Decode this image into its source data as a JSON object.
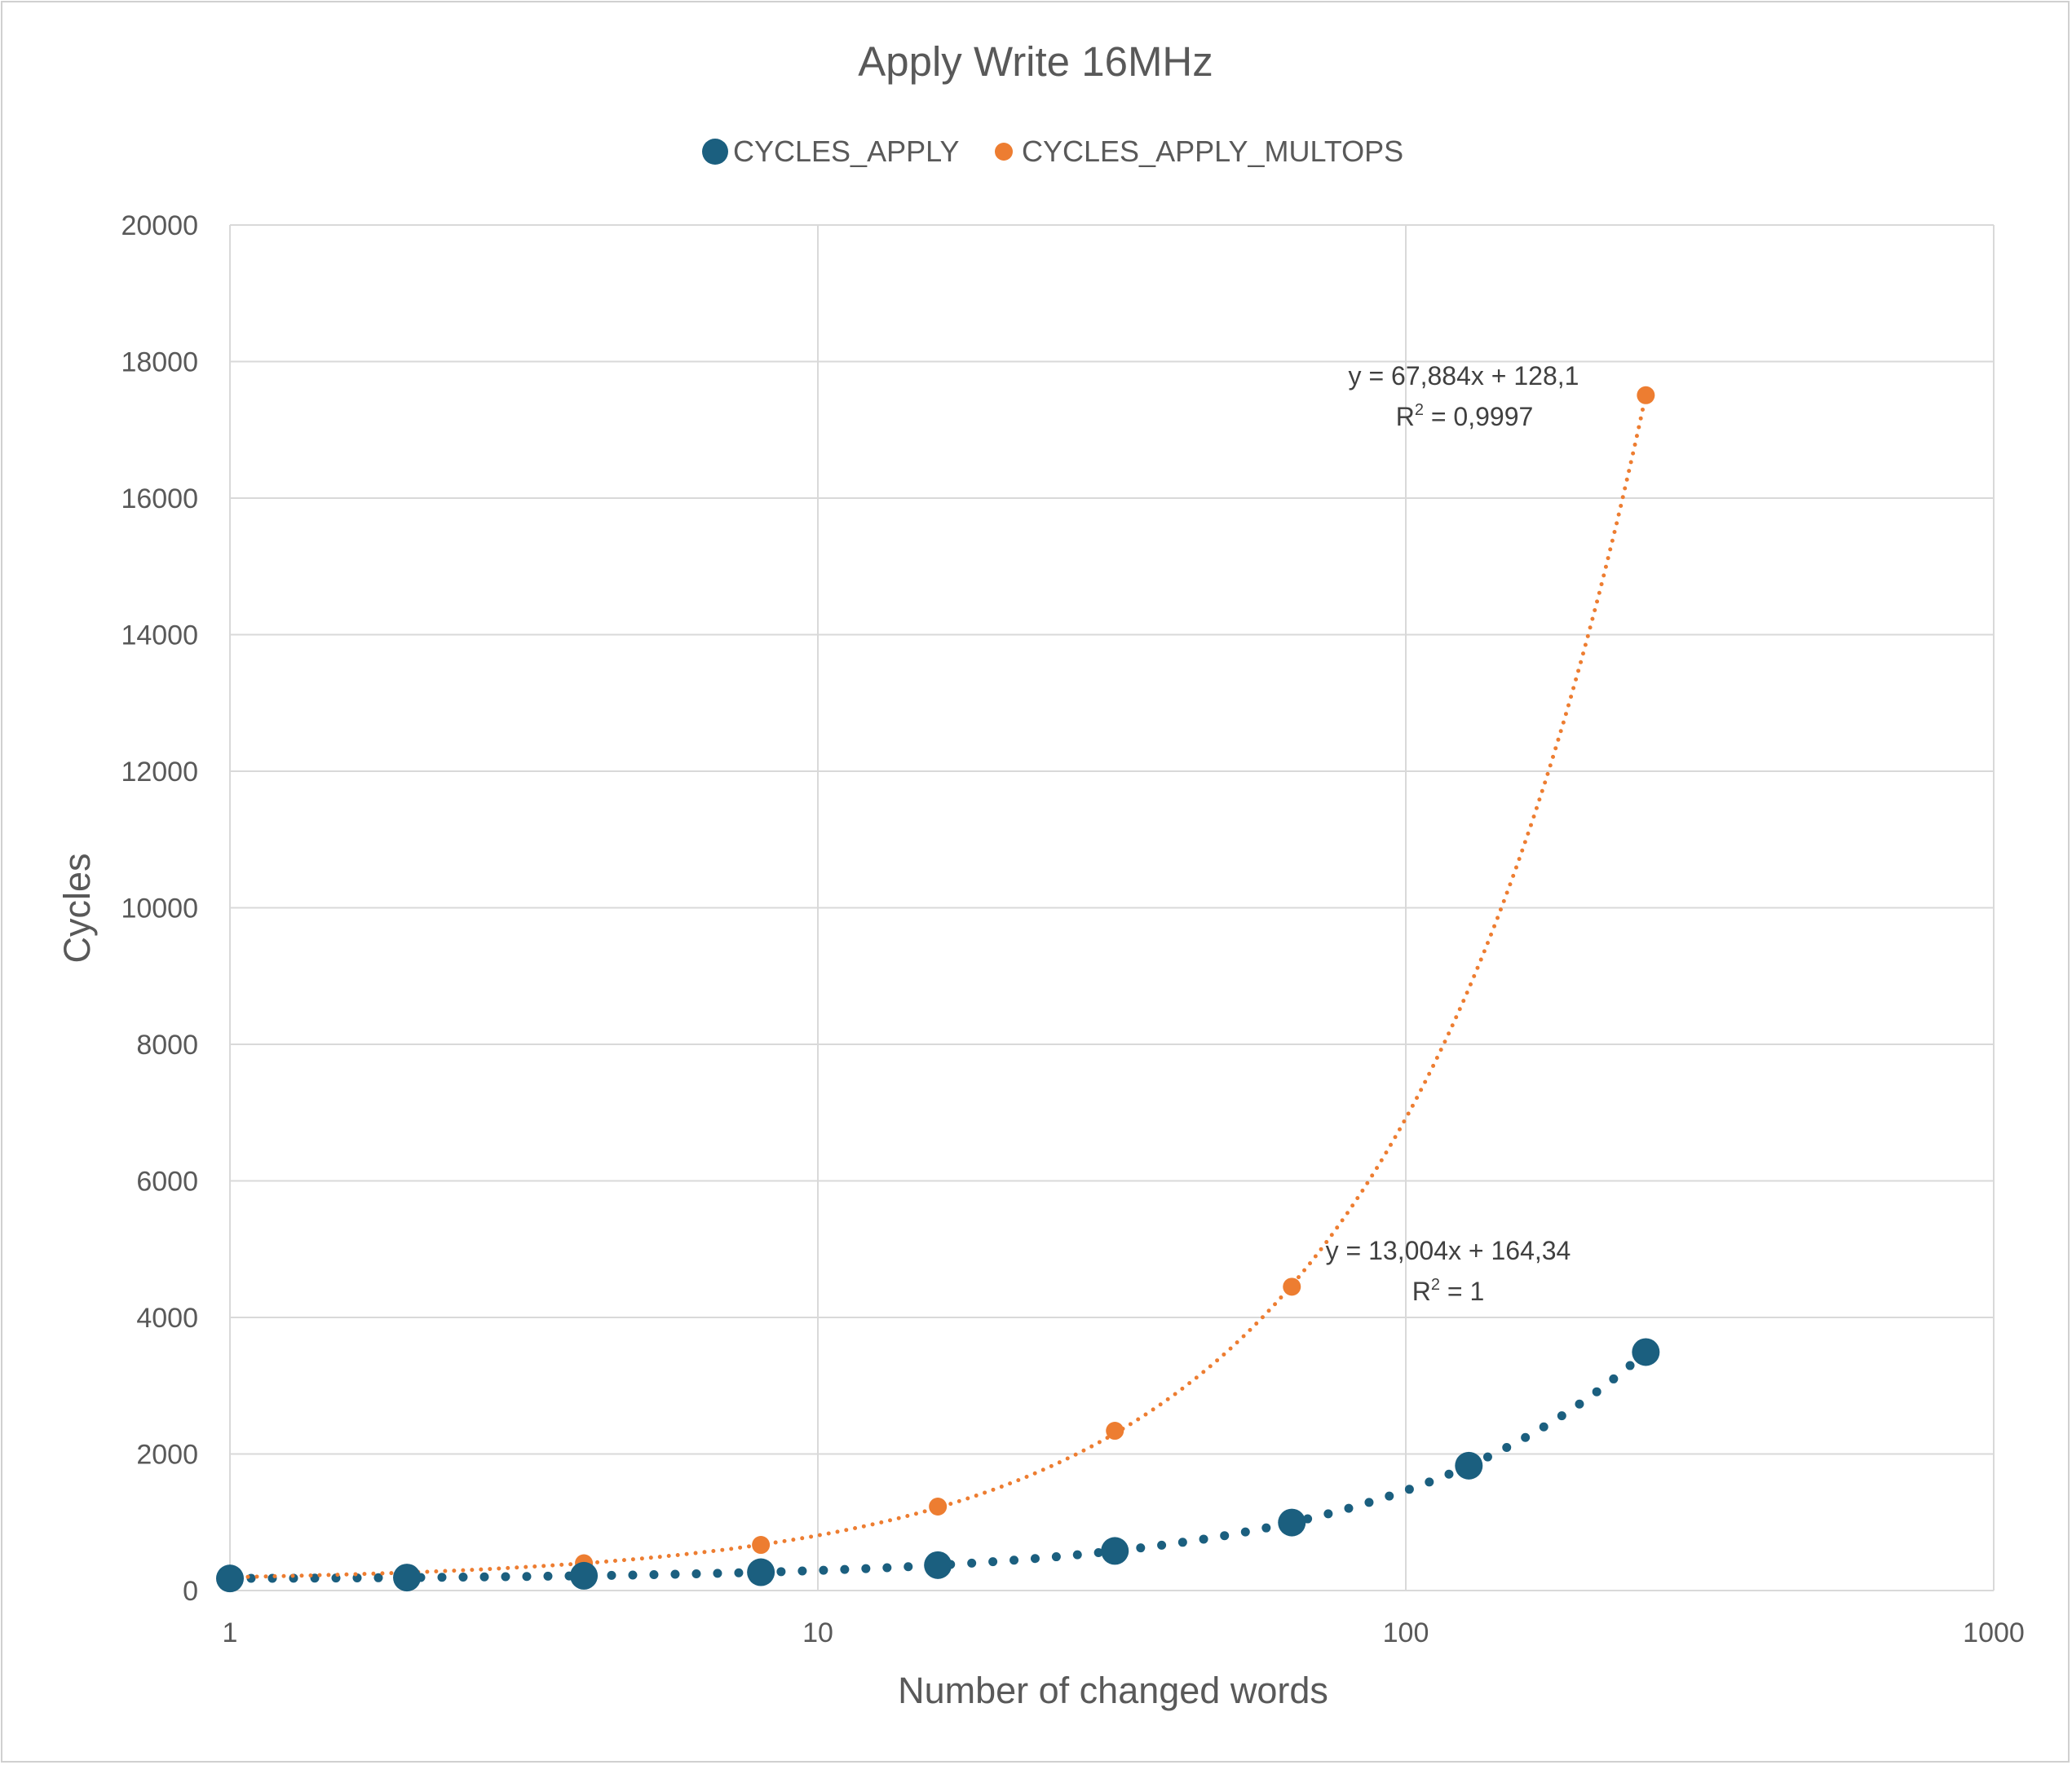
{
  "chart_data": {
    "type": "scatter",
    "title": "Apply Write 16MHz",
    "xlabel": "Number of changed words",
    "ylabel": "Cycles",
    "xscale": "log",
    "xlim": [
      1,
      1000
    ],
    "ylim": [
      0,
      20000
    ],
    "xticks": [
      "1",
      "10",
      "100",
      "1000"
    ],
    "yticks": [
      "0",
      "2000",
      "4000",
      "6000",
      "8000",
      "10000",
      "12000",
      "14000",
      "16000",
      "18000",
      "20000"
    ],
    "grid": true,
    "legend_position": "top",
    "series": [
      {
        "name": "CYCLES_APPLY",
        "color": "#1b5f7f",
        "marker": "large-circle",
        "x": [
          1,
          2,
          4,
          8,
          16,
          32,
          64,
          128,
          256
        ],
        "y": [
          177,
          190,
          216,
          268,
          372,
          580,
          996,
          1829,
          3493
        ],
        "trendline": {
          "type": "linear",
          "slope": 13.004,
          "intercept": 164.34,
          "equation": "y = 13,004x + 164,34",
          "r2_prefix": "R",
          "r2_sup": "2",
          "r2_value": " = 1"
        }
      },
      {
        "name": "CYCLES_APPLY_MULTOPS",
        "color": "#ed7d31",
        "marker": "small-circle",
        "x": [
          1,
          2,
          4,
          8,
          16,
          32,
          64,
          256
        ],
        "y": [
          196,
          211,
          400,
          668,
          1230,
          2340,
          4450,
          17507
        ],
        "trendline": {
          "type": "linear",
          "slope": 67.884,
          "intercept": 128.1,
          "equation": "y = 67,884x + 128,1",
          "r2_prefix": "R",
          "r2_sup": "2",
          "r2_value": " = 0,9997"
        }
      }
    ]
  }
}
